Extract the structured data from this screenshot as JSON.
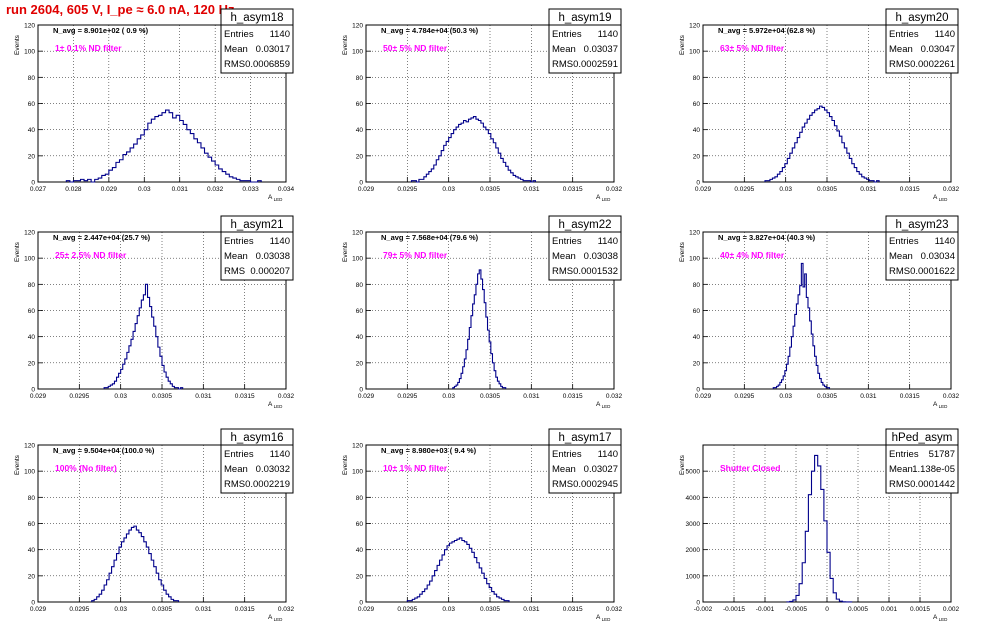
{
  "page_title": "run 2604,   605 V, I_pe ≈ 6.0 nA, 120 Hz",
  "colors": {
    "histogram": "#00008b",
    "annotation": "#ff00ff",
    "title": "#e00000",
    "grid": "#000000"
  },
  "chart_data": [
    {
      "type": "bar",
      "name": "h_asym18",
      "nlabel": "N_avg = 8.901e+02 ( 0.9 %)",
      "filter": "1± 0.1% ND filter",
      "stats": {
        "entries": "1140",
        "mean": "0.03017",
        "rms": "0.0006859"
      },
      "xlim": [
        0.027,
        0.034
      ],
      "ylim": [
        0,
        120
      ],
      "xticks": [
        "0.027",
        "0.028",
        "0.029",
        "0.03",
        "0.031",
        "0.032",
        "0.033",
        "0.034"
      ],
      "yticks": [
        "0",
        "20",
        "40",
        "60",
        "80",
        "100",
        "120"
      ],
      "xlabel": "A_LED",
      "ylabel": "Events",
      "bins": {
        "start": 0.0278,
        "width": 0.0001,
        "values": [
          1,
          0,
          1,
          1,
          2,
          1,
          2,
          0,
          2,
          3,
          5,
          6,
          9,
          11,
          15,
          17,
          21,
          23,
          26,
          29,
          33,
          36,
          40,
          45,
          48,
          50,
          51,
          53,
          55,
          53,
          49,
          51,
          47,
          44,
          40,
          37,
          33,
          30,
          26,
          22,
          19,
          16,
          13,
          10,
          8,
          6,
          4,
          3,
          2,
          1,
          1,
          1,
          0,
          0,
          1
        ]
      }
    },
    {
      "type": "bar",
      "name": "h_asym19",
      "nlabel": "N_avg = 4.784e+04 (50.3 %)",
      "filter": "50± 5% ND filter",
      "stats": {
        "entries": "1140",
        "mean": "0.03037",
        "rms": "0.0002591"
      },
      "xlim": [
        0.029,
        0.032
      ],
      "ylim": [
        0,
        120
      ],
      "xticks": [
        "0.029",
        "0.0295",
        "0.03",
        "0.0305",
        "0.031",
        "0.0315",
        "0.032"
      ],
      "yticks": [
        "0",
        "20",
        "40",
        "60",
        "80",
        "100",
        "120"
      ],
      "xlabel": "A_LED",
      "ylabel": "Events",
      "bins": {
        "start": 0.02955,
        "width": 3e-05,
        "values": [
          1,
          1,
          0,
          2,
          2,
          4,
          6,
          8,
          10,
          13,
          17,
          20,
          24,
          28,
          31,
          34,
          37,
          40,
          42,
          44,
          45,
          47,
          46,
          48,
          49,
          50,
          48,
          47,
          45,
          42,
          40,
          37,
          33,
          30,
          26,
          22,
          18,
          15,
          12,
          9,
          7,
          5,
          4,
          3,
          2,
          1,
          1,
          1,
          0,
          1
        ]
      }
    },
    {
      "type": "bar",
      "name": "h_asym20",
      "nlabel": "N_avg = 5.972e+04 (62.8 %)",
      "filter": "63± 5% ND filter",
      "stats": {
        "entries": "1140",
        "mean": "0.03047",
        "rms": "0.0002261"
      },
      "xlim": [
        0.029,
        0.032
      ],
      "ylim": [
        0,
        120
      ],
      "xticks": [
        "0.029",
        "0.0295",
        "0.03",
        "0.0305",
        "0.031",
        "0.0315",
        "0.032"
      ],
      "yticks": [
        "0",
        "20",
        "40",
        "60",
        "80",
        "100",
        "120"
      ],
      "xlabel": "A_LED",
      "ylabel": "Events",
      "bins": {
        "start": 0.02975,
        "width": 3e-05,
        "values": [
          1,
          1,
          2,
          3,
          4,
          6,
          8,
          11,
          14,
          18,
          22,
          26,
          30,
          34,
          38,
          42,
          45,
          48,
          51,
          53,
          55,
          56,
          58,
          57,
          55,
          53,
          50,
          47,
          43,
          39,
          35,
          30,
          26,
          22,
          18,
          14,
          11,
          8,
          6,
          4,
          3,
          2,
          1,
          1,
          0,
          1
        ]
      }
    },
    {
      "type": "bar",
      "name": "h_asym21",
      "nlabel": "N_avg = 2.447e+04 (25.7 %)",
      "filter": "25± 2.5% ND filter",
      "stats": {
        "entries": "1140",
        "mean": "0.03038",
        "rms": "0.000207"
      },
      "xlim": [
        0.029,
        0.032
      ],
      "ylim": [
        0,
        120
      ],
      "xticks": [
        "0.029",
        "0.0295",
        "0.03",
        "0.0305",
        "0.031",
        "0.0315",
        "0.032"
      ],
      "yticks": [
        "0",
        "20",
        "40",
        "60",
        "80",
        "100",
        "120"
      ],
      "xlabel": "A_LED",
      "ylabel": "Events",
      "bins": {
        "start": 0.0298,
        "width": 2.5e-05,
        "values": [
          1,
          1,
          2,
          3,
          4,
          6,
          9,
          12,
          15,
          19,
          23,
          28,
          33,
          38,
          44,
          50,
          56,
          62,
          68,
          72,
          80,
          70,
          63,
          55,
          48,
          40,
          32,
          25,
          18,
          13,
          9,
          6,
          4,
          2,
          1,
          1,
          0,
          1
        ]
      }
    },
    {
      "type": "bar",
      "name": "h_asym22",
      "nlabel": "N_avg = 7.568e+04 (79.6 %)",
      "filter": "79± 5% ND filter",
      "stats": {
        "entries": "1140",
        "mean": "0.03038",
        "rms": "0.0001532"
      },
      "xlim": [
        0.029,
        0.032
      ],
      "ylim": [
        0,
        120
      ],
      "xticks": [
        "0.029",
        "0.0295",
        "0.03",
        "0.0305",
        "0.031",
        "0.0315",
        "0.032"
      ],
      "yticks": [
        "0",
        "20",
        "40",
        "60",
        "80",
        "100",
        "120"
      ],
      "xlabel": "A_LED",
      "ylabel": "Events",
      "bins": {
        "start": 0.03005,
        "width": 2e-05,
        "values": [
          1,
          2,
          3,
          5,
          8,
          12,
          17,
          23,
          30,
          38,
          47,
          56,
          65,
          72,
          80,
          88,
          91,
          84,
          76,
          66,
          55,
          45,
          36,
          27,
          20,
          14,
          9,
          6,
          4,
          2,
          1,
          1
        ]
      }
    },
    {
      "type": "bar",
      "name": "h_asym23",
      "nlabel": "N_avg = 3.827e+04 (40.3 %)",
      "filter": "40± 4% ND filter",
      "stats": {
        "entries": "1140",
        "mean": "0.03034",
        "rms": "0.0001622"
      },
      "xlim": [
        0.029,
        0.032
      ],
      "ylim": [
        0,
        120
      ],
      "xticks": [
        "0.029",
        "0.0295",
        "0.03",
        "0.0305",
        "0.031",
        "0.0315",
        "0.032"
      ],
      "yticks": [
        "0",
        "20",
        "40",
        "60",
        "80",
        "100",
        "120"
      ],
      "xlabel": "A_LED",
      "ylabel": "Events",
      "bins": {
        "start": 0.02985,
        "width": 2e-05,
        "values": [
          1,
          1,
          2,
          3,
          5,
          7,
          10,
          14,
          19,
          25,
          32,
          40,
          48,
          57,
          65,
          72,
          79,
          96,
          78,
          88,
          70,
          62,
          52,
          42,
          33,
          25,
          18,
          12,
          8,
          5,
          3,
          2,
          1,
          1
        ]
      }
    },
    {
      "type": "bar",
      "name": "h_asym16",
      "nlabel": "N_avg = 9.504e+04 (100.0 %)",
      "filter": "100% (No filter)",
      "stats": {
        "entries": "1140",
        "mean": "0.03032",
        "rms": "0.0002219"
      },
      "xlim": [
        0.029,
        0.032
      ],
      "ylim": [
        0,
        120
      ],
      "xticks": [
        "0.029",
        "0.0295",
        "0.03",
        "0.0305",
        "0.031",
        "0.0315",
        "0.032"
      ],
      "yticks": [
        "0",
        "20",
        "40",
        "60",
        "80",
        "100",
        "120"
      ],
      "xlabel": "A_LED",
      "ylabel": "Events",
      "bins": {
        "start": 0.02965,
        "width": 3e-05,
        "values": [
          1,
          2,
          4,
          6,
          9,
          13,
          17,
          22,
          27,
          32,
          37,
          42,
          46,
          49,
          52,
          55,
          57,
          58,
          55,
          53,
          50,
          46,
          42,
          37,
          32,
          27,
          22,
          17,
          13,
          9,
          6,
          4,
          2,
          1,
          1
        ]
      }
    },
    {
      "type": "bar",
      "name": "h_asym17",
      "nlabel": "N_avg = 8.980e+03 ( 9.4 %)",
      "filter": "10± 1% ND filter",
      "stats": {
        "entries": "1140",
        "mean": "0.03027",
        "rms": "0.0002945"
      },
      "xlim": [
        0.029,
        0.032
      ],
      "ylim": [
        0,
        120
      ],
      "xticks": [
        "0.029",
        "0.0295",
        "0.03",
        "0.0305",
        "0.031",
        "0.0315",
        "0.032"
      ],
      "yticks": [
        "0",
        "20",
        "40",
        "60",
        "80",
        "100",
        "120"
      ],
      "xlabel": "A_LED",
      "ylabel": "Events",
      "bins": {
        "start": 0.0295,
        "width": 3e-05,
        "values": [
          1,
          1,
          2,
          3,
          4,
          6,
          8,
          10,
          13,
          16,
          20,
          24,
          28,
          32,
          36,
          40,
          43,
          45,
          46,
          47,
          48,
          49,
          47,
          46,
          44,
          41,
          38,
          34,
          30,
          26,
          22,
          18,
          14,
          11,
          8,
          6,
          4,
          3,
          2,
          1,
          1
        ]
      }
    },
    {
      "type": "bar",
      "name": "hPed_asym",
      "nlabel": "",
      "filter": "Shutter Closed",
      "stats": {
        "entries": "51787",
        "mean": "1.138e-05",
        "rms": "0.0001442"
      },
      "xlim": [
        -0.002,
        0.002
      ],
      "ylim": [
        0,
        6000
      ],
      "xticks": [
        "-0.002",
        "-0.0015",
        "-0.001",
        "-0.0005",
        "0",
        "0.0005",
        "0.001",
        "0.0015",
        "0.002"
      ],
      "yticks": [
        "0",
        "1000",
        "2000",
        "3000",
        "4000",
        "5000"
      ],
      "xlabel": "A_LED",
      "ylabel": "Events",
      "bins": {
        "start": -0.00065,
        "width": 5e-05,
        "values": [
          5,
          20,
          80,
          250,
          700,
          1500,
          2700,
          4100,
          5000,
          5600,
          5200,
          4300,
          3100,
          1900,
          900,
          350,
          110,
          30,
          8,
          2,
          1
        ]
      }
    }
  ]
}
